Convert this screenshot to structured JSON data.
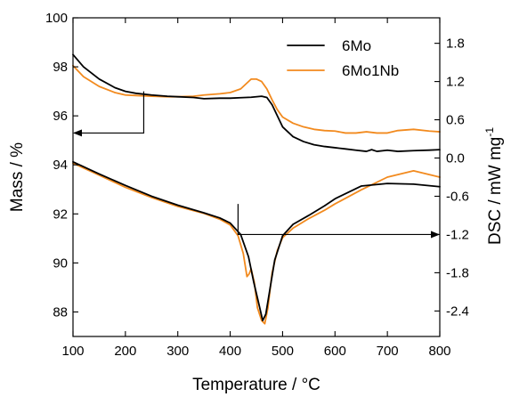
{
  "chart_data": {
    "type": "line",
    "xlabel": "Temperature / °C",
    "ylabel_left": "Mass / %",
    "ylabel_right_main": "DSC / mW mg",
    "ylabel_right_sup": "-1",
    "xlim": [
      100,
      800
    ],
    "ylim_left": [
      87,
      100
    ],
    "ylim_right": [
      -2.8,
      2.2
    ],
    "x_ticks": [
      "100",
      "200",
      "300",
      "400",
      "500",
      "600",
      "700",
      "800"
    ],
    "y_left_ticks": [
      "88",
      "90",
      "92",
      "94",
      "96",
      "98",
      "100"
    ],
    "y_right_ticks": [
      "-2.4",
      "-1.8",
      "-1.2",
      "-0.6",
      "0.0",
      "0.6",
      "1.2",
      "1.8"
    ],
    "legend": {
      "position": "top-right",
      "entries": [
        "6Mo",
        "6Mo1Nb"
      ]
    },
    "colors": {
      "6Mo": "#000000",
      "6Mo1Nb": "#f28a1e"
    },
    "series": [
      {
        "name": "6Mo",
        "curve": "mass",
        "axis": "left",
        "x": [
          100,
          120,
          150,
          180,
          200,
          220,
          250,
          280,
          300,
          330,
          350,
          380,
          400,
          420,
          440,
          460,
          470,
          480,
          490,
          500,
          520,
          540,
          560,
          580,
          600,
          620,
          640,
          660,
          670,
          680,
          700,
          720,
          750,
          780,
          800
        ],
        "y": [
          98.5,
          98.0,
          97.5,
          97.15,
          97.0,
          96.92,
          96.85,
          96.8,
          96.78,
          96.75,
          96.7,
          96.72,
          96.72,
          96.74,
          96.76,
          96.8,
          96.75,
          96.45,
          96.0,
          95.55,
          95.15,
          94.95,
          94.82,
          94.75,
          94.7,
          94.65,
          94.6,
          94.55,
          94.62,
          94.55,
          94.6,
          94.55,
          94.58,
          94.6,
          94.62
        ]
      },
      {
        "name": "6Mo1Nb",
        "curve": "mass",
        "axis": "left",
        "x": [
          100,
          120,
          150,
          180,
          200,
          220,
          250,
          280,
          300,
          330,
          350,
          380,
          400,
          420,
          430,
          440,
          450,
          460,
          470,
          480,
          490,
          500,
          520,
          540,
          560,
          580,
          600,
          620,
          640,
          660,
          680,
          700,
          720,
          750,
          780,
          800
        ],
        "y": [
          98.05,
          97.6,
          97.2,
          96.95,
          96.85,
          96.83,
          96.8,
          96.78,
          96.78,
          96.8,
          96.85,
          96.9,
          96.95,
          97.1,
          97.3,
          97.5,
          97.5,
          97.4,
          97.1,
          96.65,
          96.25,
          95.95,
          95.7,
          95.55,
          95.45,
          95.4,
          95.38,
          95.3,
          95.3,
          95.35,
          95.3,
          95.3,
          95.4,
          95.45,
          95.38,
          95.35
        ]
      },
      {
        "name": "6Mo",
        "curve": "dsc",
        "axis": "right",
        "x": [
          100,
          150,
          200,
          250,
          300,
          350,
          380,
          400,
          420,
          435,
          445,
          455,
          462,
          468,
          475,
          485,
          500,
          520,
          550,
          580,
          600,
          650,
          700,
          750,
          800
        ],
        "y": [
          -0.06,
          -0.25,
          -0.43,
          -0.6,
          -0.74,
          -0.86,
          -0.94,
          -1.02,
          -1.2,
          -1.55,
          -1.95,
          -2.3,
          -2.55,
          -2.45,
          -2.1,
          -1.6,
          -1.22,
          -1.04,
          -0.9,
          -0.75,
          -0.64,
          -0.44,
          -0.4,
          -0.41,
          -0.45
        ]
      },
      {
        "name": "6Mo1Nb",
        "curve": "dsc",
        "axis": "right",
        "x": [
          100,
          150,
          200,
          250,
          300,
          350,
          380,
          400,
          415,
          425,
          432,
          436,
          440,
          446,
          452,
          460,
          466,
          472,
          480,
          490,
          500,
          520,
          550,
          580,
          600,
          650,
          700,
          750,
          800
        ],
        "y": [
          -0.08,
          -0.27,
          -0.46,
          -0.62,
          -0.76,
          -0.87,
          -0.96,
          -1.05,
          -1.22,
          -1.5,
          -1.86,
          -1.82,
          -1.74,
          -1.95,
          -2.35,
          -2.55,
          -2.6,
          -2.35,
          -1.8,
          -1.45,
          -1.25,
          -1.1,
          -0.95,
          -0.82,
          -0.72,
          -0.5,
          -0.3,
          -0.2,
          -0.3
        ]
      }
    ],
    "annotations": [
      {
        "type": "arrow",
        "direction": "left",
        "points_to": "left-axis",
        "x_start": 235,
        "x_end": 100,
        "y_vert_from": 97.0,
        "y": 95.3
      },
      {
        "type": "arrow",
        "direction": "right",
        "points_to": "right-axis",
        "x_start": 415,
        "x_end": 800,
        "y_vert_from": -0.72,
        "y": -1.2
      }
    ]
  }
}
